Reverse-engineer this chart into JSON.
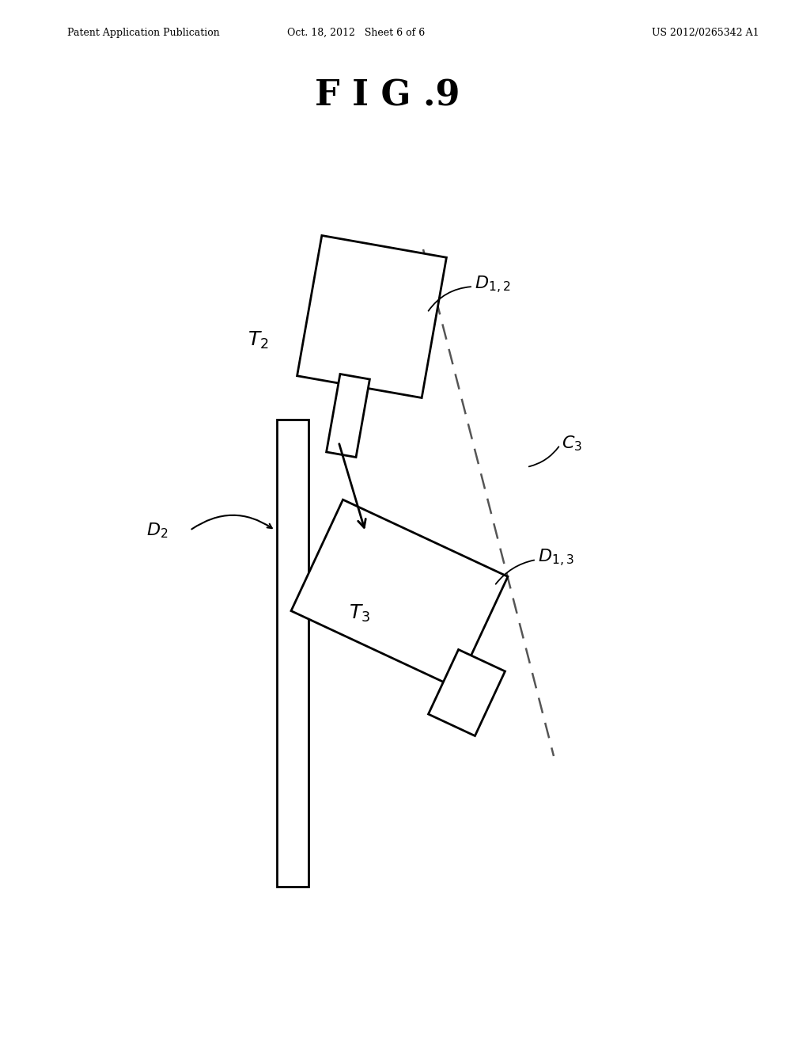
{
  "title": "F I G .9",
  "header_left": "Patent Application Publication",
  "header_center": "Oct. 18, 2012   Sheet 6 of 6",
  "header_right": "US 2012/0265342 A1",
  "background_color": "#ffffff",
  "line_color": "#000000",
  "dashed_color": "#555555",
  "fig_width": 10.24,
  "fig_height": 13.2
}
